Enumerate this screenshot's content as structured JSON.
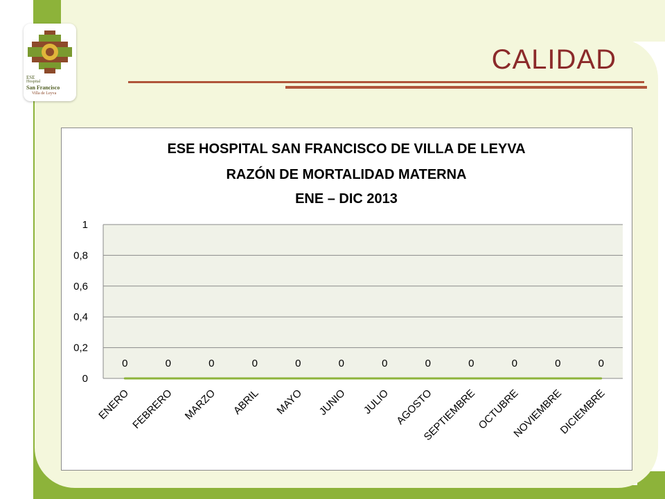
{
  "slide": {
    "title": "CALIDAD",
    "logo": {
      "line1": "ESE",
      "line2": "Hospital",
      "line3": "San Francisco",
      "line4": "Villa de Leyva"
    }
  },
  "colors": {
    "accent_green": "#8db33a",
    "panel": "#f4f7dc",
    "title": "#8b2a2a",
    "rule": "#b0553a",
    "plot_bg": "#f0f2e8",
    "series": "#8db33a"
  },
  "chart_data": {
    "type": "line",
    "title": "ESE HOSPITAL SAN FRANCISCO DE VILLA DE LEYVA",
    "subtitle": "RAZÓN DE MORTALIDAD MATERNA",
    "period": "ENE – DIC 2013",
    "categories": [
      "ENERO",
      "FEBRERO",
      "MARZO",
      "ABRIL",
      "MAYO",
      "JUNIO",
      "JULIO",
      "AGOSTO",
      "SEPTIEMBRE",
      "OCTUBRE",
      "NOVIEMBRE",
      "DICIEMBRE"
    ],
    "values": [
      0,
      0,
      0,
      0,
      0,
      0,
      0,
      0,
      0,
      0,
      0,
      0
    ],
    "data_labels": [
      "0",
      "0",
      "0",
      "0",
      "0",
      "0",
      "0",
      "0",
      "0",
      "0",
      "0",
      "0"
    ],
    "ylim": [
      0,
      1
    ],
    "yticks": [
      "0",
      "0,2",
      "0,4",
      "0,6",
      "0,8",
      "1"
    ],
    "grid": true,
    "legend": "none",
    "xlabel": "",
    "ylabel": ""
  }
}
